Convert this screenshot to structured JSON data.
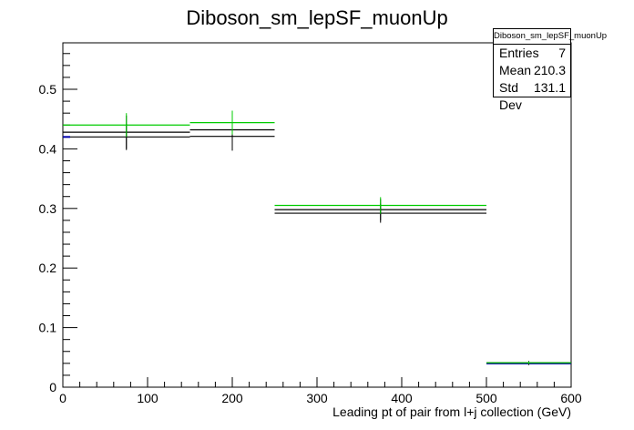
{
  "chart_data": {
    "type": "step",
    "title": "Diboson_sm_lepSF_muonUp",
    "xlabel": "Leading pt of pair from l+j collection (GeV)",
    "ylabel": "",
    "xlim": [
      0,
      600
    ],
    "ylim": [
      0,
      0.578
    ],
    "xticks": [
      0,
      100,
      200,
      300,
      400,
      500,
      600
    ],
    "yticks": [
      0,
      0.1,
      0.2,
      0.3,
      0.4,
      0.5
    ],
    "bin_edges": [
      0,
      150,
      250,
      500,
      600
    ],
    "series": [
      {
        "values": [
          0.42,
          0.421,
          0.292,
          0.04
        ],
        "errors": [
          0.022,
          0.024,
          0.016,
          0.003
        ],
        "color": "#000000",
        "edge_bins": [
          [
            0,
            0.42,
            "#0000aa"
          ],
          [
            3,
            0.04,
            "#0000aa"
          ]
        ]
      },
      {
        "values": [
          0.428,
          0.432,
          0.298,
          0.041
        ],
        "errors": [
          0.028,
          0.029,
          0.018,
          0.003
        ],
        "color": "#000000"
      },
      {
        "values": [
          0.44,
          0.444,
          0.305,
          0.041
        ],
        "errors": [
          0.02,
          0.02,
          0.014,
          0.002
        ],
        "color": "#00cc00"
      }
    ],
    "error_bar_color": "#000000",
    "grid": false,
    "legend": "none",
    "stats_box": {
      "title": "Diboson_sm_lepSF_muonUp",
      "rows": [
        {
          "label": "Entries",
          "value": "7"
        },
        {
          "label": "Mean",
          "value": "210.3"
        },
        {
          "label": "Std Dev",
          "value": "131.1"
        }
      ]
    }
  }
}
